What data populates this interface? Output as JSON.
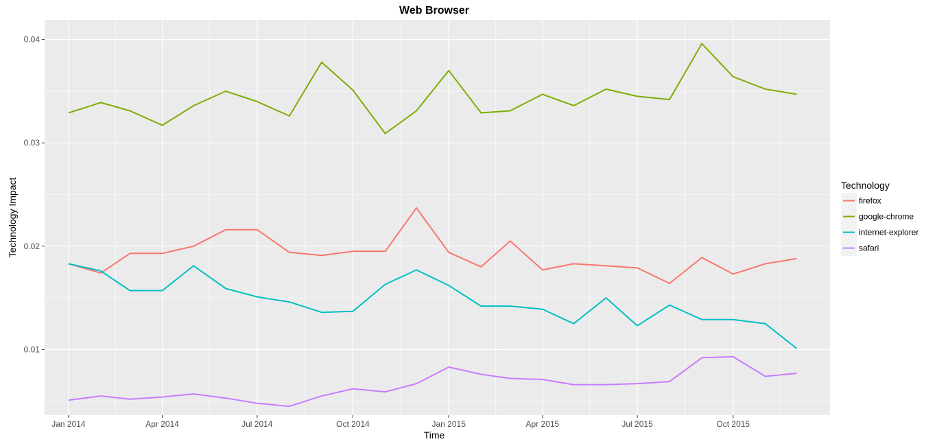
{
  "chart_data": {
    "type": "line",
    "title": "Web Browser",
    "xlabel": "Time",
    "ylabel": "Technology Impact",
    "x": [
      "2014-01",
      "2014-02",
      "2014-03",
      "2014-04",
      "2014-05",
      "2014-06",
      "2014-07",
      "2014-08",
      "2014-09",
      "2014-10",
      "2014-11",
      "2014-12",
      "2015-01",
      "2015-02",
      "2015-03",
      "2015-04",
      "2015-05",
      "2015-06",
      "2015-07",
      "2015-08",
      "2015-09",
      "2015-10",
      "2015-11",
      "2015-12"
    ],
    "x_ticks": [
      {
        "x": "2014-01",
        "label": "Jan 2014"
      },
      {
        "x": "2014-04",
        "label": "Apr 2014"
      },
      {
        "x": "2014-07",
        "label": "Jul 2014"
      },
      {
        "x": "2014-10",
        "label": "Oct 2014"
      },
      {
        "x": "2015-01",
        "label": "Jan 2015"
      },
      {
        "x": "2015-04",
        "label": "Apr 2015"
      },
      {
        "x": "2015-07",
        "label": "Jul 2015"
      },
      {
        "x": "2015-10",
        "label": "Oct 2015"
      }
    ],
    "y_ticks": [
      {
        "value": 0.01,
        "label": "0.01"
      },
      {
        "value": 0.02,
        "label": "0.02"
      },
      {
        "value": 0.03,
        "label": "0.03"
      },
      {
        "value": 0.04,
        "label": "0.04"
      }
    ],
    "xlim": [
      "2013-12-09",
      "2016-01-02"
    ],
    "ylim": [
      0.00365,
      0.0419
    ],
    "grid": true,
    "legend_title": "Technology",
    "legend_position": "right",
    "series": [
      {
        "name": "firefox",
        "color": "#F8766D",
        "values": [
          0.0183,
          0.0174,
          0.0193,
          0.0193,
          0.02,
          0.0216,
          0.0216,
          0.0194,
          0.0191,
          0.0195,
          0.0195,
          0.0237,
          0.0194,
          0.018,
          0.0205,
          0.0177,
          0.0183,
          0.0181,
          0.0179,
          0.0164,
          0.0189,
          0.0173,
          0.0183,
          0.0188
        ]
      },
      {
        "name": "google-chrome",
        "color": "#7CAE00",
        "values": [
          0.0329,
          0.0339,
          0.0331,
          0.0317,
          0.0336,
          0.035,
          0.034,
          0.0326,
          0.0378,
          0.0351,
          0.0309,
          0.0331,
          0.037,
          0.0329,
          0.0331,
          0.0347,
          0.0336,
          0.0352,
          0.0345,
          0.0342,
          0.0396,
          0.0364,
          0.0352,
          0.0347
        ]
      },
      {
        "name": "internet-explorer",
        "color": "#00BFC4",
        "values": [
          0.0183,
          0.0176,
          0.0157,
          0.0157,
          0.0181,
          0.0159,
          0.0151,
          0.0146,
          0.0136,
          0.0137,
          0.0163,
          0.0177,
          0.0162,
          0.0142,
          0.0142,
          0.0139,
          0.0125,
          0.015,
          0.0123,
          0.0143,
          0.0129,
          0.0129,
          0.0125,
          0.0101
        ]
      },
      {
        "name": "safari",
        "color": "#C77CFF",
        "values": [
          0.0051,
          0.0055,
          0.0052,
          0.0054,
          0.0057,
          0.0053,
          0.0048,
          0.0045,
          0.0055,
          0.0062,
          0.0059,
          0.0067,
          0.0083,
          0.0076,
          0.0072,
          0.0071,
          0.0066,
          0.0066,
          0.0067,
          0.0069,
          0.0092,
          0.0093,
          0.0074,
          0.0077
        ]
      }
    ]
  }
}
